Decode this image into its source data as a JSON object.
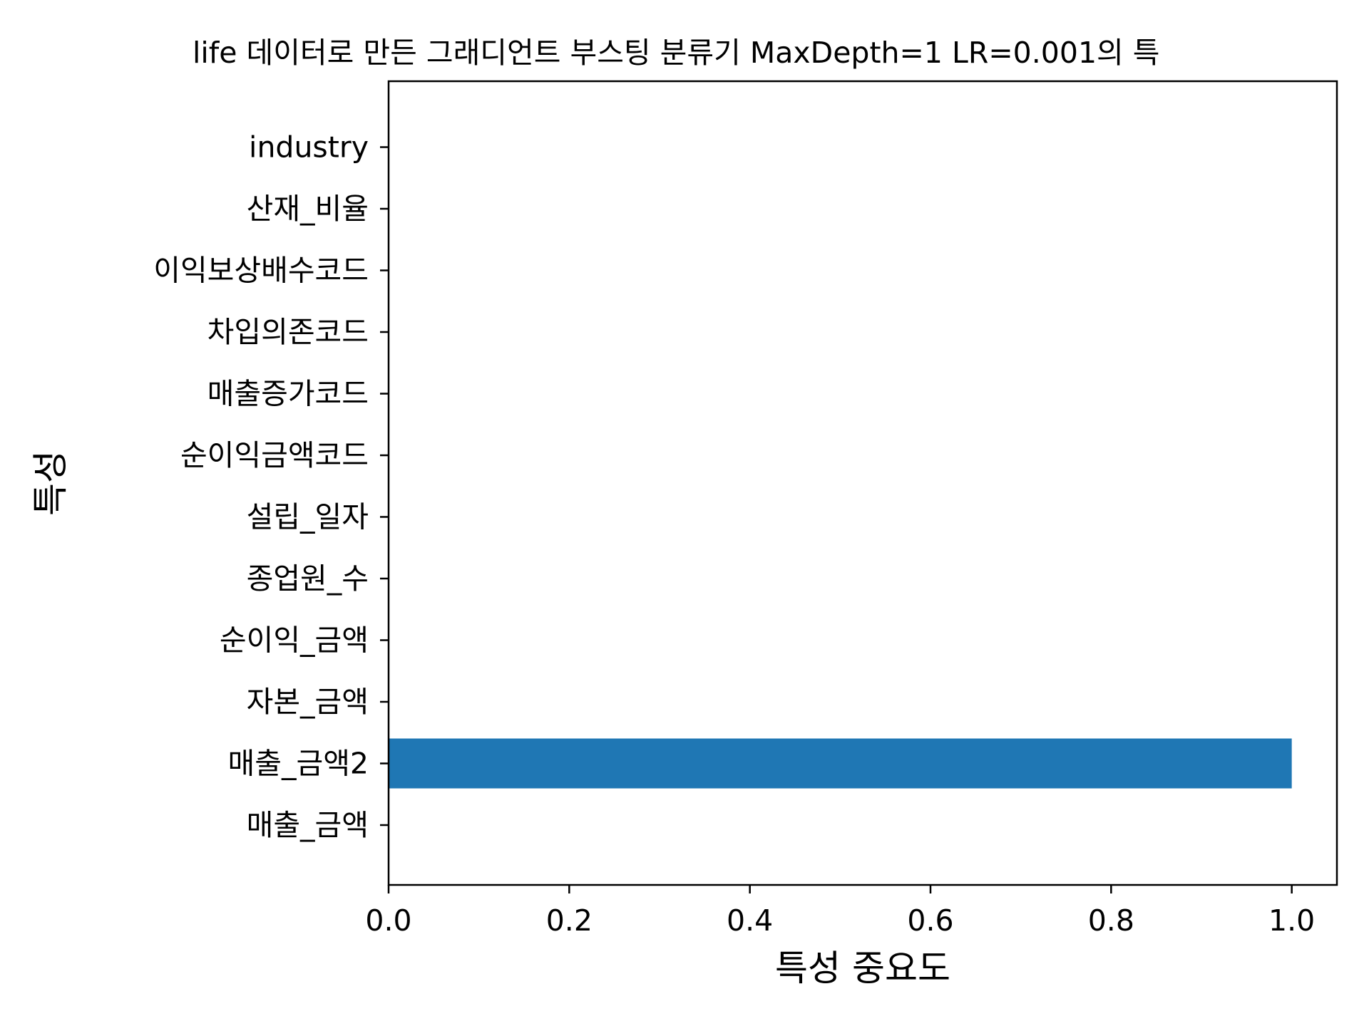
{
  "chart_data": {
    "type": "bar",
    "orientation": "horizontal",
    "title": "life 데이터로 만든 그래디언트 부스팅 분류기 MaxDepth=1 LR=0.001의 특",
    "xlabel": "특성 중요도",
    "ylabel": "특성",
    "categories": [
      "매출_금액",
      "매출_금액2",
      "자본_금액",
      "순이익_금액",
      "종업원_수",
      "설립_일자",
      "순이익금액코드",
      "매출증가코드",
      "차입의존코드",
      "이익보상배수코드",
      "산재_비율",
      "industry"
    ],
    "values": [
      0.0,
      1.0,
      0.0,
      0.0,
      0.0,
      0.0,
      0.0,
      0.0,
      0.0,
      0.0,
      0.0,
      0.0
    ],
    "xlim": [
      0.0,
      1.05
    ],
    "xticks": [
      "0.0",
      "0.2",
      "0.4",
      "0.6",
      "0.8",
      "1.0"
    ],
    "grid": false,
    "legend": "none",
    "bar_color": "#1f77b4"
  }
}
